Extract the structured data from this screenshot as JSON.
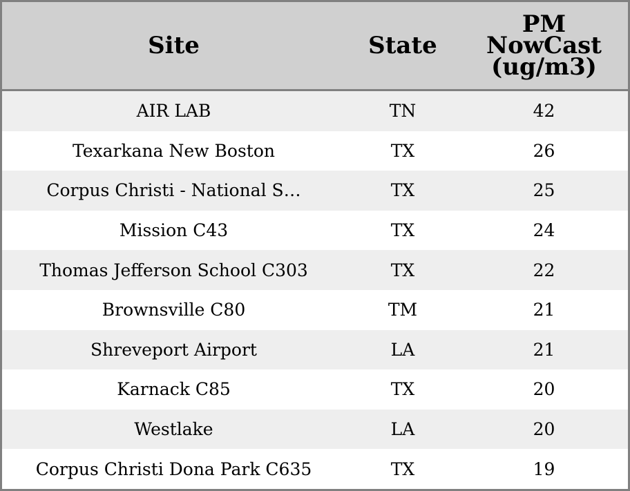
{
  "table": {
    "headers": [
      "Site",
      "State",
      "PM NowCast (ug/m3)"
    ],
    "rows": [
      [
        "AIR LAB",
        "TN",
        42
      ],
      [
        "Texarkana New Boston",
        "TX",
        26
      ],
      [
        "Corpus Christi - National S…",
        "TX",
        25
      ],
      [
        "Mission C43",
        "TX",
        24
      ],
      [
        "Thomas Jefferson School C303",
        "TX",
        22
      ],
      [
        "Brownsville C80",
        "TM",
        21
      ],
      [
        "Shreveport Airport",
        "LA",
        21
      ],
      [
        "Karnack C85",
        "TX",
        20
      ],
      [
        "Westlake",
        "LA",
        20
      ],
      [
        "Corpus Christi Dona Park C635",
        "TX",
        19
      ]
    ]
  }
}
